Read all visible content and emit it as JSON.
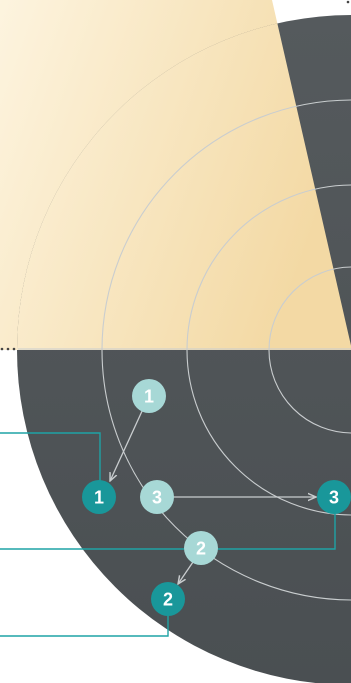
{
  "colors": {
    "disk": "#555a5d",
    "disk_lower": "#4a4f52",
    "rings": "#c9cdcf",
    "wedge_light": "#fdf4df",
    "wedge_dark": "#f3d9a4",
    "teal": "#19979a",
    "teal_light": "#a7d8d6",
    "teal_light_text": "#e9f5f4",
    "leader": "#1fa3a5",
    "dots": "#444444"
  },
  "markers": {
    "pair_1": {
      "light_label": "1",
      "dark_label": "1"
    },
    "pair_2": {
      "light_label": "2",
      "dark_label": "2"
    },
    "pair_3": {
      "light_label": "3",
      "dark_label": "3"
    }
  }
}
